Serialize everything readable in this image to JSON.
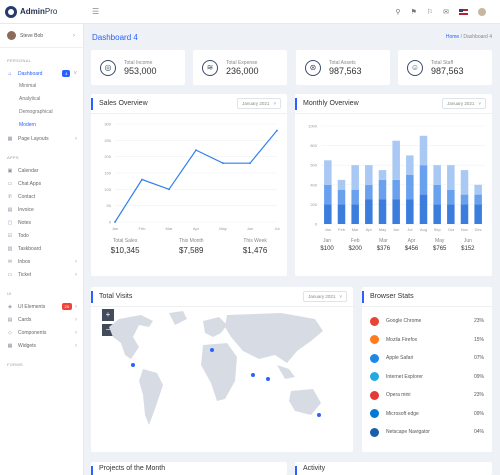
{
  "app": {
    "logo_bold": "Admin",
    "logo_light": "Pro"
  },
  "topbar": {
    "icons": [
      "search-icon",
      "bell-icon",
      "flag-icon",
      "envelope-icon"
    ]
  },
  "sidebar": {
    "user_name": "Steve Bob",
    "sections": {
      "personal": "PERSONAL",
      "apps": "APPS",
      "ui": "UI",
      "forms": "FORMS"
    },
    "dashboard": {
      "label": "Dashboard",
      "badge": "4"
    },
    "sub_items": [
      "Minimal",
      "Analytical",
      "Demographical",
      "Modern"
    ],
    "page_layouts": "Page Layouts",
    "apps": [
      "Calendar",
      "Chat Apps",
      "Contact",
      "Invoice",
      "Notes",
      "Todo",
      "Taskboard",
      "Inbox",
      "Ticket"
    ],
    "ui": {
      "elements": "UI Elements",
      "elements_badge": "25",
      "items": [
        "Cards",
        "Components",
        "Widgets"
      ]
    }
  },
  "breadcrumb": {
    "title": "Dashboard 4",
    "home": "Home",
    "separator": "/",
    "current": "Dashboard 4"
  },
  "stats": [
    {
      "label": "Total Income",
      "value": "953,000",
      "icon": "globe-icon"
    },
    {
      "label": "Total Expense",
      "value": "236,000",
      "icon": "layers-icon"
    },
    {
      "label": "Total Assets",
      "value": "987,563",
      "icon": "dribbble-icon"
    },
    {
      "label": "Total Staff",
      "value": "987,563",
      "icon": "user-icon"
    }
  ],
  "sales": {
    "title": "Sales Overview",
    "select": "January 2021",
    "summary": [
      {
        "label": "Total Sales",
        "value": "$10,345"
      },
      {
        "label": "This Month",
        "value": "$7,589"
      },
      {
        "label": "This Week",
        "value": "$1,476"
      }
    ]
  },
  "monthly": {
    "title": "Monthly Overview",
    "select": "January 2021",
    "footer": [
      {
        "month": "Jan",
        "amount": "$100"
      },
      {
        "month": "Feb",
        "amount": "$200"
      },
      {
        "month": "Mar",
        "amount": "$376"
      },
      {
        "month": "Apr",
        "amount": "$456"
      },
      {
        "month": "May",
        "amount": "$765"
      },
      {
        "month": "Jun",
        "amount": "$152"
      }
    ]
  },
  "visits": {
    "title": "Total Visits",
    "select": "January 2021",
    "zoom_in": "+",
    "zoom_out": "−"
  },
  "browsers": {
    "title": "Browser Stats",
    "rows": [
      {
        "name": "Google Chrome",
        "pct": "23%",
        "color": "#e94335"
      },
      {
        "name": "Mozila Firefox",
        "pct": "15%",
        "color": "#ff7b1c"
      },
      {
        "name": "Apple Safari",
        "pct": "07%",
        "color": "#1e88e5"
      },
      {
        "name": "Internet Explorer",
        "pct": "09%",
        "color": "#26a9e0"
      },
      {
        "name": "Opera mini",
        "pct": "23%",
        "color": "#e53935"
      },
      {
        "name": "Microsoft edge",
        "pct": "09%",
        "color": "#0078d7"
      },
      {
        "name": "Netscape Navigator",
        "pct": "04%",
        "color": "#1a5fa8"
      }
    ]
  },
  "bottom": {
    "projects_title": "Projects of the Month",
    "activity_title": "Activity"
  },
  "chart_data": [
    {
      "type": "line",
      "title": "Sales Overview",
      "categories": [
        "Jan",
        "Feb",
        "Mar",
        "Apr",
        "May",
        "Jun",
        "Jul"
      ],
      "values": [
        0,
        130,
        100,
        220,
        180,
        180,
        280
      ],
      "yticks": [
        "0",
        "50",
        "100",
        "150",
        "200",
        "250",
        "300"
      ],
      "ylim": [
        0,
        300
      ],
      "color": "#2f80ed"
    },
    {
      "type": "bar",
      "title": "Monthly Overview",
      "categories": [
        "Jan",
        "Feb",
        "Mar",
        "Apr",
        "May",
        "Jun",
        "Jul",
        "Aug",
        "Sep",
        "Oct",
        "Nov",
        "Dec"
      ],
      "yticks": [
        "0",
        "200",
        "400",
        "600",
        "800",
        "1000"
      ],
      "ylim": [
        0,
        1000
      ],
      "stacked": true,
      "series": [
        {
          "values": [
            200,
            200,
            200,
            250,
            250,
            250,
            250,
            300,
            200,
            200,
            200,
            200
          ],
          "color": "#3b7ddd"
        },
        {
          "values": [
            200,
            150,
            150,
            150,
            200,
            200,
            250,
            300,
            200,
            150,
            100,
            100
          ],
          "color": "#6aa1ee"
        },
        {
          "values": [
            250,
            100,
            250,
            200,
            100,
            400,
            200,
            300,
            200,
            250,
            250,
            100
          ],
          "color": "#a9c8f3"
        }
      ]
    }
  ]
}
